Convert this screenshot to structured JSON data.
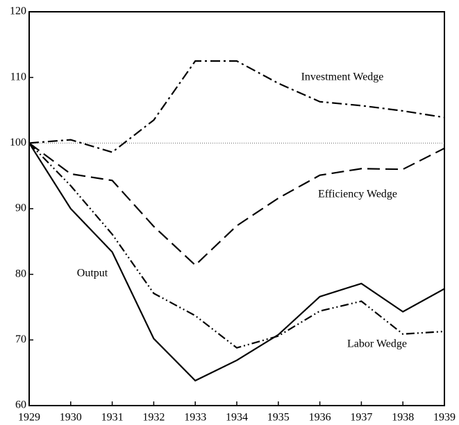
{
  "chart_data": {
    "type": "line",
    "x": [
      1929,
      1930,
      1931,
      1932,
      1933,
      1934,
      1935,
      1936,
      1937,
      1938,
      1939
    ],
    "xlim": [
      1929,
      1939
    ],
    "xticks": [
      1929,
      1930,
      1931,
      1932,
      1933,
      1934,
      1935,
      1936,
      1937,
      1938,
      1939
    ],
    "ylim": [
      60,
      120
    ],
    "yticks": [
      60,
      70,
      80,
      90,
      100,
      110,
      120
    ],
    "reference_line": 100,
    "series": [
      {
        "name": "Output",
        "color": "#000000",
        "values": [
          100,
          90.0,
          83.4,
          70.2,
          63.8,
          66.9,
          70.8,
          76.6,
          78.6,
          74.3,
          77.8
        ]
      },
      {
        "name": "Investment Wedge",
        "color": "#000000",
        "values": [
          100,
          100.5,
          98.6,
          103.5,
          112.5,
          112.5,
          109.1,
          106.3,
          105.7,
          104.9,
          103.9
        ]
      },
      {
        "name": "Efficiency Wedge",
        "color": "#000000",
        "values": [
          100,
          95.3,
          94.3,
          87.3,
          81.4,
          87.4,
          91.6,
          95.1,
          96.1,
          96.0,
          99.2
        ]
      },
      {
        "name": "Labor Wedge",
        "color": "#000000",
        "values": [
          100,
          93.5,
          86.1,
          77.1,
          73.7,
          68.8,
          70.6,
          74.4,
          75.9,
          70.9,
          71.3
        ]
      }
    ]
  }
}
